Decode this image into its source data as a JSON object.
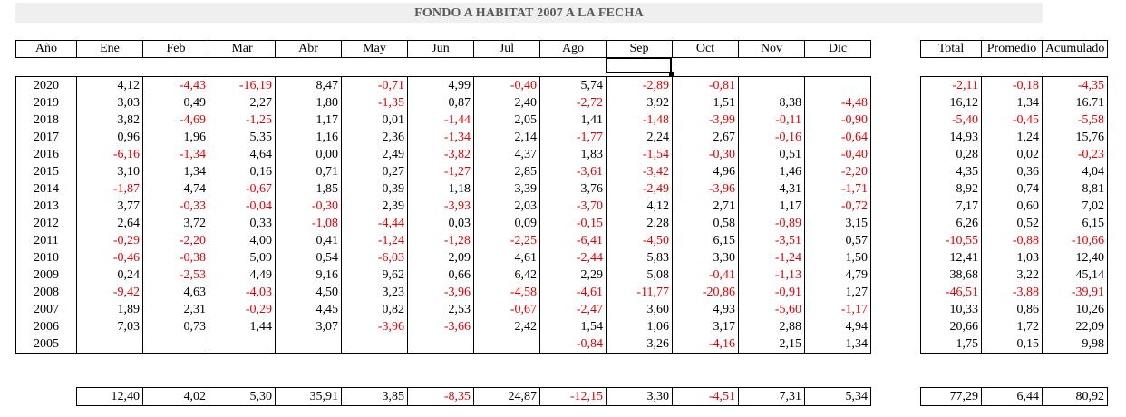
{
  "title": "FONDO A HABITAT 2007 A LA FECHA",
  "headers": {
    "year": "Año",
    "months": [
      "Ene",
      "Feb",
      "Mar",
      "Abr",
      "May",
      "Jun",
      "Jul",
      "Ago",
      "Sep",
      "Oct",
      "Nov",
      "Dic"
    ],
    "summary": [
      "Total",
      "Promedio",
      "Acumulado"
    ]
  },
  "rows": [
    {
      "year": "2020",
      "months": [
        "4,12",
        "-4,43",
        "-16,19",
        "8,47",
        "-0,71",
        "4,99",
        "-0,40",
        "5,74",
        "-2,89",
        "-0,81",
        "",
        ""
      ],
      "summary": [
        "-2,11",
        "-0,18",
        "-4,35"
      ]
    },
    {
      "year": "2019",
      "months": [
        "3,03",
        "0,49",
        "2,27",
        "1,80",
        "-1,35",
        "0,87",
        "2,40",
        "-2,72",
        "3,92",
        "1,51",
        "8,38",
        "-4,48"
      ],
      "summary": [
        "16,12",
        "1,34",
        "16.71"
      ]
    },
    {
      "year": "2018",
      "months": [
        "3,82",
        "-4,69",
        "-1,25",
        "1,17",
        "0,01",
        "-1,44",
        "2,05",
        "1,41",
        "-1,48",
        "-3,99",
        "-0,11",
        "-0,90"
      ],
      "summary": [
        "-5,40",
        "-0,45",
        "-5,58"
      ]
    },
    {
      "year": "2017",
      "months": [
        "0,96",
        "1,96",
        "5,35",
        "1,16",
        "2,36",
        "-1,34",
        "2,14",
        "-1,77",
        "2,24",
        "2,67",
        "-0,16",
        "-0,64"
      ],
      "summary": [
        "14,93",
        "1,24",
        "15,76"
      ]
    },
    {
      "year": "2016",
      "months": [
        "-6,16",
        "-1,34",
        "4,64",
        "0,00",
        "2,49",
        "-3,82",
        "4,37",
        "1,83",
        "-1,54",
        "-0,30",
        "0,51",
        "-0,40"
      ],
      "summary": [
        "0,28",
        "0,02",
        "-0,23"
      ]
    },
    {
      "year": "2015",
      "months": [
        "3,10",
        "1,34",
        "0,16",
        "0,71",
        "0,27",
        "-1,27",
        "2,85",
        "-3,61",
        "-3,42",
        "4,96",
        "1,46",
        "-2,20"
      ],
      "summary": [
        "4,35",
        "0,36",
        "4,04"
      ]
    },
    {
      "year": "2014",
      "months": [
        "-1,87",
        "4,74",
        "-0,67",
        "1,85",
        "0,39",
        "1,18",
        "3,39",
        "3,76",
        "-2,49",
        "-3,96",
        "4,31",
        "-1,71"
      ],
      "summary": [
        "8,92",
        "0,74",
        "8,81"
      ]
    },
    {
      "year": "2013",
      "months": [
        "3,77",
        "-0,33",
        "-0,04",
        "-0,30",
        "2,39",
        "-3,93",
        "2,03",
        "-3,70",
        "4,12",
        "2,71",
        "1,17",
        "-0,72"
      ],
      "summary": [
        "7,17",
        "0,60",
        "7,02"
      ]
    },
    {
      "year": "2012",
      "months": [
        "2,64",
        "3,72",
        "0,33",
        "-1,08",
        "-4,44",
        "0,03",
        "0,09",
        "-0,15",
        "2,28",
        "0,58",
        "-0,89",
        "3,15"
      ],
      "summary": [
        "6,26",
        "0,52",
        "6,15"
      ]
    },
    {
      "year": "2011",
      "months": [
        "-0,29",
        "-2,20",
        "4,00",
        "0,41",
        "-1,24",
        "-1,28",
        "-2,25",
        "-6,41",
        "-4,50",
        "6,15",
        "-3,51",
        "0,57"
      ],
      "summary": [
        "-10,55",
        "-0,88",
        "-10,66"
      ]
    },
    {
      "year": "2010",
      "months": [
        "-0,46",
        "-0,38",
        "5,09",
        "0,54",
        "-6,03",
        "2,09",
        "4,61",
        "-2,44",
        "5,83",
        "3,30",
        "-1,24",
        "1,50"
      ],
      "summary": [
        "12,41",
        "1,03",
        "12,40"
      ]
    },
    {
      "year": "2009",
      "months": [
        "0,24",
        "-2,53",
        "4,49",
        "9,16",
        "9,62",
        "0,66",
        "6,42",
        "2,29",
        "5,08",
        "-0,41",
        "-1,13",
        "4,79"
      ],
      "summary": [
        "38,68",
        "3,22",
        "45,14"
      ]
    },
    {
      "year": "2008",
      "months": [
        "-9,42",
        "4,63",
        "-4,03",
        "4,50",
        "3,23",
        "-3,96",
        "-4,58",
        "-4,61",
        "-11,77",
        "-20,86",
        "-0,91",
        "1,27"
      ],
      "summary": [
        "-46,51",
        "-3,88",
        "-39,91"
      ]
    },
    {
      "year": "2007",
      "months": [
        "1,89",
        "2,31",
        "-0,29",
        "4,45",
        "0,82",
        "2,53",
        "-0,67",
        "-2,47",
        "3,60",
        "4,93",
        "-5,60",
        "-1,17"
      ],
      "summary": [
        "10,33",
        "0,86",
        "10,26"
      ]
    },
    {
      "year": "2006",
      "months": [
        "7,03",
        "0,73",
        "1,44",
        "3,07",
        "-3,96",
        "-3,66",
        "2,42",
        "1,54",
        "1,06",
        "3,17",
        "2,88",
        "4,94"
      ],
      "summary": [
        "20,66",
        "1,72",
        "22,09"
      ]
    },
    {
      "year": "2005",
      "months": [
        "",
        "",
        "",
        "",
        "",
        "",
        "",
        "-0,84",
        "3,26",
        "-4,16",
        "2,15",
        "1,34"
      ],
      "summary": [
        "1,75",
        "0,15",
        "9,98"
      ]
    }
  ],
  "totals": {
    "months": [
      "12,40",
      "4,02",
      "5,30",
      "35,91",
      "3,85",
      "-8,35",
      "24,87",
      "-12,15",
      "3,30",
      "-4,51",
      "7,31",
      "5,34"
    ],
    "summary": [
      "77,29",
      "6,44",
      "80,92"
    ]
  },
  "colors": {
    "negative": "#e30000",
    "title_bg": "#efefef",
    "title_text": "#5a5a5a"
  }
}
